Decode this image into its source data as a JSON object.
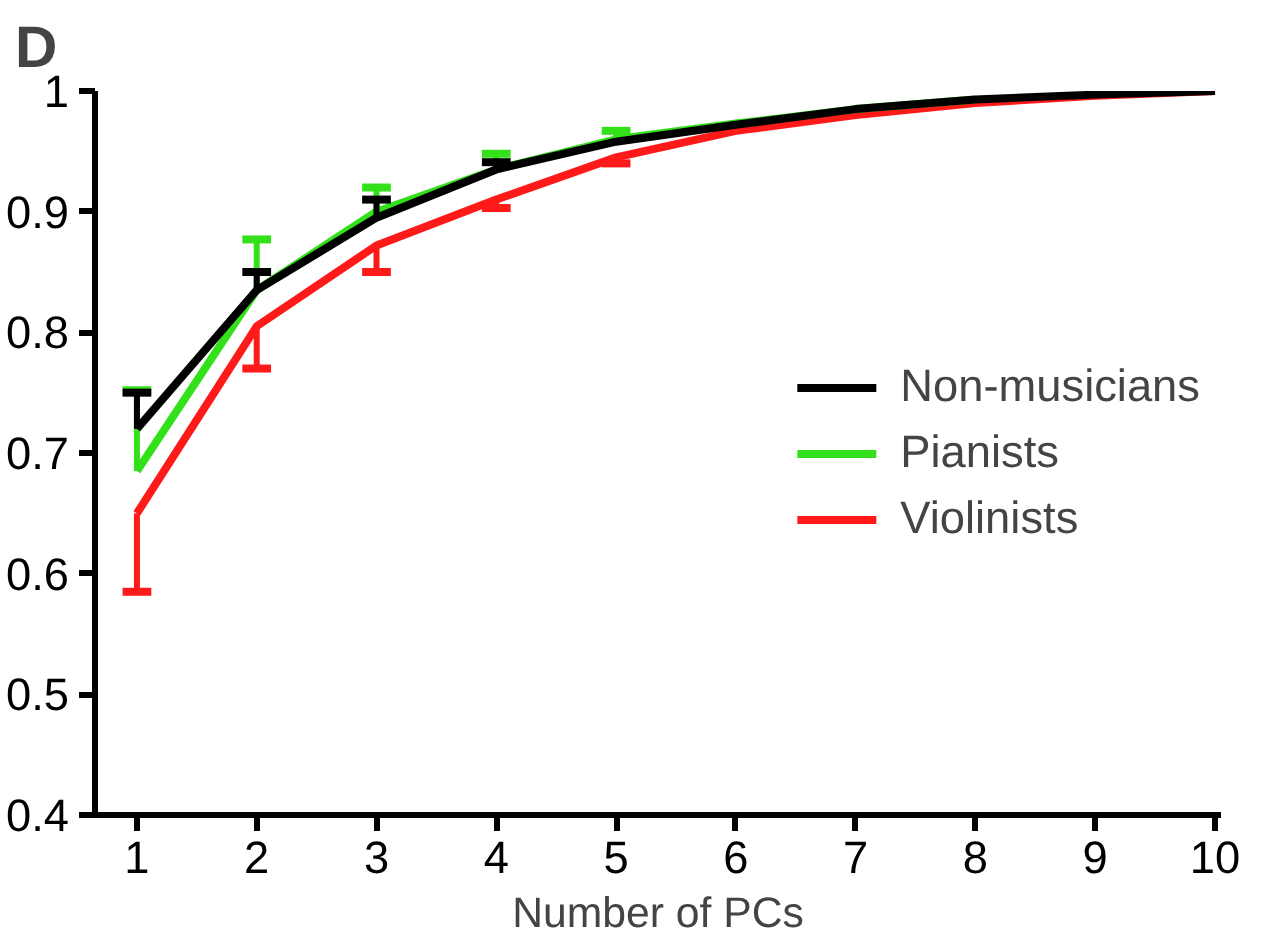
{
  "chart_data": {
    "type": "line",
    "title": "D",
    "xlabel": "Number of PCs",
    "x": [
      1,
      2,
      3,
      4,
      5,
      6,
      7,
      8,
      9,
      10
    ],
    "xlim": [
      0.65,
      10.05
    ],
    "xticks": [
      1,
      2,
      3,
      4,
      5,
      6,
      7,
      8,
      9,
      10
    ],
    "ylim": [
      0.4,
      1
    ],
    "yticks": [
      0.4,
      0.5,
      0.6,
      0.7,
      0.8,
      0.9,
      1
    ],
    "grid": false,
    "legend": "right",
    "marker": "none",
    "line_style": "solid",
    "series": [
      {
        "name": "Non-musicians",
        "color": "#000000",
        "values": [
          0.72,
          0.835,
          0.895,
          0.935,
          0.958,
          0.972,
          0.985,
          0.993,
          0.997,
          1.0
        ],
        "errors": [
          [
            0.72,
            0.75
          ],
          [
            0.835,
            0.85
          ],
          [
            0.895,
            0.91
          ],
          [
            0.935,
            0.941
          ],
          null,
          null,
          null,
          null,
          null,
          null
        ]
      },
      {
        "name": "Pianists",
        "color": "#33e11a",
        "values": [
          0.685,
          0.835,
          0.9,
          0.935,
          0.96,
          0.973,
          0.985,
          0.993,
          null,
          null
        ],
        "errors": [
          [
            0.685,
            0.752
          ],
          [
            0.835,
            0.877
          ],
          [
            0.9,
            0.92
          ],
          [
            0.935,
            0.948
          ],
          [
            0.96,
            0.967
          ],
          null,
          null,
          null,
          null,
          null
        ]
      },
      {
        "name": "Violinists",
        "color": "#ff1a1a",
        "values": [
          0.65,
          0.805,
          0.872,
          0.91,
          0.945,
          0.967,
          0.98,
          0.99,
          0.996,
          1.0
        ],
        "errors": [
          [
            0.585,
            0.65
          ],
          [
            0.77,
            0.805
          ],
          [
            0.85,
            0.872
          ],
          [
            0.903,
            0.91
          ],
          [
            0.94,
            0.945
          ],
          null,
          null,
          null,
          null,
          null
        ]
      }
    ]
  }
}
